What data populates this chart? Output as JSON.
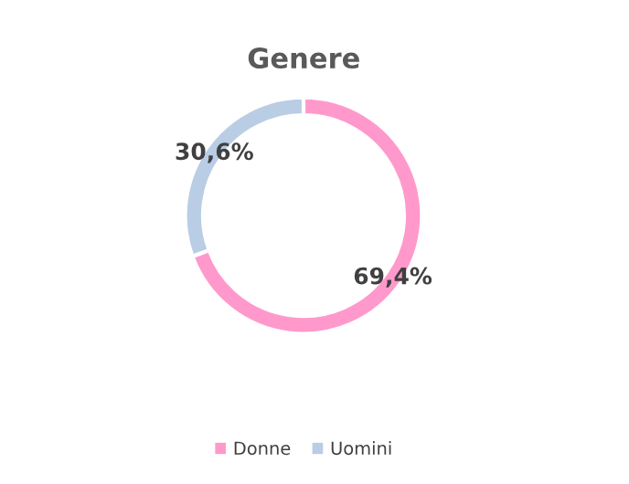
{
  "chart_data": {
    "type": "donut",
    "title": "Genere",
    "categories": [
      "Donne",
      "Uomini"
    ],
    "values": [
      69.4,
      30.6
    ],
    "colors": [
      "#ff99cc",
      "#b9cde5"
    ],
    "value_labels": [
      "69,4%",
      "30,6%"
    ],
    "legend": "bottom"
  }
}
